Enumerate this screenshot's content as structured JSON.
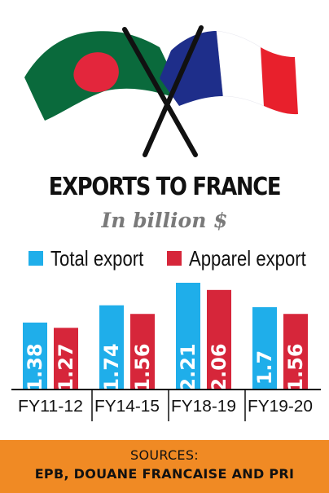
{
  "colors": {
    "total": "#1faeea",
    "apparel": "#d6263a",
    "bangladesh_green": "#0a6a3c",
    "bangladesh_red": "#e3263c",
    "france_blue": "#1e2e8a",
    "france_white": "#ffffff",
    "france_red": "#e8202c",
    "footer": "#f08a24"
  },
  "header": {
    "title": "EXPORTS TO FRANCE",
    "subtitle": "In billion $"
  },
  "legend": [
    {
      "label": "Total export",
      "color": "#1faeea"
    },
    {
      "label": "Apparel export",
      "color": "#d6263a"
    }
  ],
  "chart_data": {
    "type": "bar",
    "title": "EXPORTS TO FRANCE",
    "subtitle": "In billion $",
    "categories": [
      "FY11-12",
      "FY14-15",
      "FY18-19",
      "FY19-20"
    ],
    "series": [
      {
        "name": "Total export",
        "values": [
          1.38,
          1.74,
          2.21,
          1.7
        ],
        "labels": [
          "1.38",
          "1.74",
          "2.21",
          "1.7"
        ]
      },
      {
        "name": "Apparel export",
        "values": [
          1.27,
          1.56,
          2.06,
          1.56
        ],
        "labels": [
          "1.27",
          "1.56",
          "2.06",
          "1.56"
        ]
      }
    ],
    "ylim": [
      0,
      2.21
    ],
    "legend": "top",
    "grid": false,
    "data_labels": "inside-vertical"
  },
  "footer": {
    "line1": "SOURCES:",
    "line2": "EPB, DOUANE FRANCAISE AND PRI"
  }
}
